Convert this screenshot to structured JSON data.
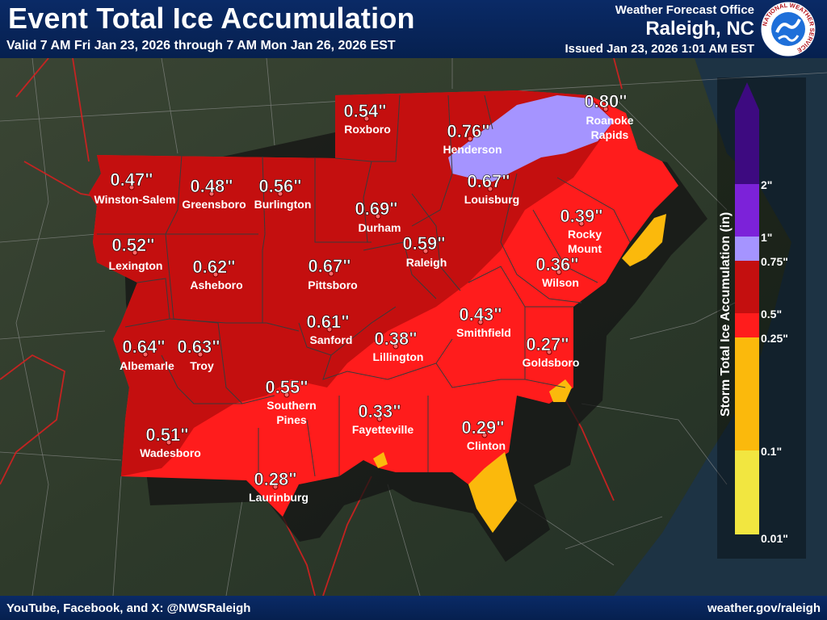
{
  "header": {
    "title": "Event Total Ice Accumulation",
    "valid": "Valid 7 AM Fri Jan 23, 2026 through 7 AM Mon Jan 26, 2026 EST",
    "office_line": "Weather Forecast Office",
    "office_city": "Raleigh, NC",
    "issued": "Issued Jan 23, 2026 1:01 AM EST",
    "logo_text": "NATIONAL WEATHER SERVICE"
  },
  "footer": {
    "social": "YouTube, Facebook, and X: @NWSRaleigh",
    "website": "weather.gov/raleigh"
  },
  "legend": {
    "title": "Storm Total Ice Accumulation (in)",
    "stops": [
      {
        "label": "0.01\"",
        "color": "#f2e640"
      },
      {
        "label": "0.1\"",
        "color": "#fbb90c"
      },
      {
        "label": "0.25\"",
        "color": "#ff1c1c"
      },
      {
        "label": "0.5\"",
        "color": "#c40f0f"
      },
      {
        "label": "0.75\"",
        "color": "#a594ff"
      },
      {
        "label": "1\"",
        "color": "#7c22d9"
      },
      {
        "label": "2\"",
        "color": "#3d0a80"
      }
    ]
  },
  "locations": [
    {
      "name": "Roxboro",
      "value": "0.54\""
    },
    {
      "name": "Henderson",
      "value": "0.76\""
    },
    {
      "name": "Roanoke Rapids",
      "value": "0.80\""
    },
    {
      "name": "Winston-Salem",
      "value": "0.47\""
    },
    {
      "name": "Greensboro",
      "value": "0.48\""
    },
    {
      "name": "Burlington",
      "value": "0.56\""
    },
    {
      "name": "Louisburg",
      "value": "0.67\""
    },
    {
      "name": "Durham",
      "value": "0.69\""
    },
    {
      "name": "Rocky Mount",
      "value": "0.39\""
    },
    {
      "name": "Lexington",
      "value": "0.52\""
    },
    {
      "name": "Raleigh",
      "value": "0.59\""
    },
    {
      "name": "Asheboro",
      "value": "0.62\""
    },
    {
      "name": "Pittsboro",
      "value": "0.67\""
    },
    {
      "name": "Wilson",
      "value": "0.36\""
    },
    {
      "name": "Smithfield",
      "value": "0.43\""
    },
    {
      "name": "Sanford",
      "value": "0.61\""
    },
    {
      "name": "Albemarle",
      "value": "0.64\""
    },
    {
      "name": "Troy",
      "value": "0.63\""
    },
    {
      "name": "Lillington",
      "value": "0.38\""
    },
    {
      "name": "Goldsboro",
      "value": "0.27\""
    },
    {
      "name": "Southern Pines",
      "value": "0.55\""
    },
    {
      "name": "Fayetteville",
      "value": "0.33\""
    },
    {
      "name": "Wadesboro",
      "value": "0.51\""
    },
    {
      "name": "Clinton",
      "value": "0.29\""
    },
    {
      "name": "Laurinburg",
      "value": "0.28\""
    }
  ]
}
